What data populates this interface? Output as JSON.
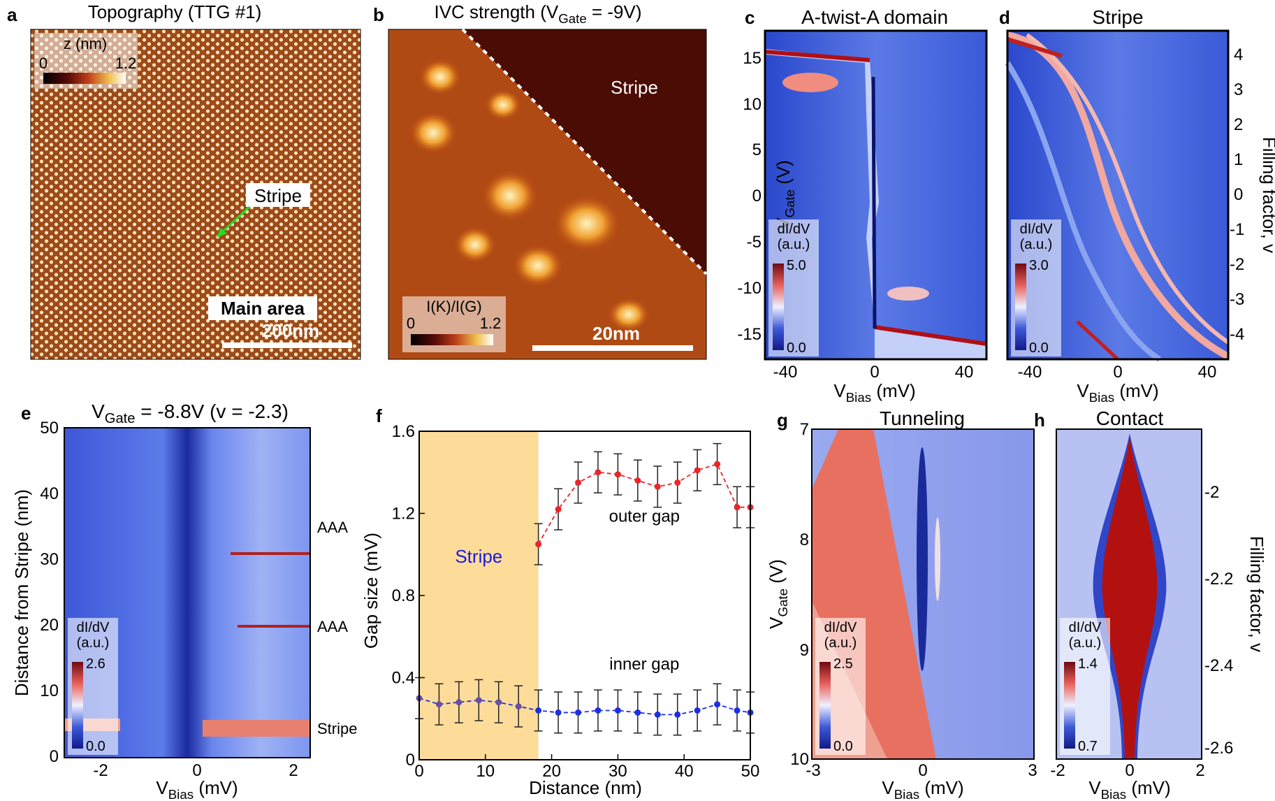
{
  "panels": {
    "a": {
      "letter": "a",
      "title": "Topography (TTG #1)",
      "cbar_title": "z (nm)",
      "cbar_min": "0",
      "cbar_max": "1.2",
      "stripe_label": "Stripe",
      "area_label": "Main area",
      "scale_label": "200nm"
    },
    "b": {
      "letter": "b",
      "title_main": "IVC strength (V",
      "title_sub": "Gate",
      "title_end": " = -9V)",
      "stripe_label": "Stripe",
      "cbar_title": "I(K)/I(G)",
      "cbar_min": "0",
      "cbar_max": "1.2",
      "scale_label": "20nm"
    },
    "c": {
      "letter": "c",
      "title": "A-twist-A domain",
      "ylabel_main": "V",
      "ylabel_sub": "Gate",
      "ylabel_end": " (V)",
      "yticks": [
        "15",
        "10",
        "5",
        "0",
        "-5",
        "-10",
        "-15"
      ],
      "xticks": [
        "-40",
        "0",
        "40"
      ],
      "xlabel_main": "V",
      "xlabel_sub": "Bias",
      "xlabel_end": " (mV)",
      "cbar_title1": "dI/dV",
      "cbar_title2": "(a.u.)",
      "cbar_max": "5.0",
      "cbar_min": "0.0"
    },
    "d": {
      "letter": "d",
      "title": "Stripe",
      "xticks": [
        "-40",
        "0",
        "40"
      ],
      "xlabel_main": "V",
      "xlabel_sub": "Bias",
      "xlabel_end": " (mV)",
      "right_ticks": [
        "4",
        "3",
        "2",
        "1",
        "0",
        "-1",
        "-2",
        "-3",
        "-4"
      ],
      "right_label": "Filling factor, v",
      "cbar_title1": "dI/dV",
      "cbar_title2": "(a.u.)",
      "cbar_max": "3.0",
      "cbar_min": "0.0"
    },
    "e": {
      "letter": "e",
      "title_main": "V",
      "title_sub": "Gate",
      "title_end": " = -8.8V (v = -2.3)",
      "ylabel": "Distance from Stripe (nm)",
      "yticks": [
        "50",
        "40",
        "30",
        "20",
        "10",
        "0"
      ],
      "xticks": [
        "-2",
        "0",
        "2"
      ],
      "xlabel_main": "V",
      "xlabel_sub": "Bias",
      "xlabel_end": " (mV)",
      "annotations": [
        "AAA",
        "AAA",
        "Stripe"
      ],
      "cbar_title1": "dI/dV",
      "cbar_title2": "(a.u.)",
      "cbar_max": "2.6",
      "cbar_min": "0.0"
    },
    "g": {
      "letter": "g",
      "title": "Tunneling",
      "ylabel_main": "V",
      "ylabel_sub": "Gate",
      "ylabel_end": " (V)",
      "yticks": [
        "7",
        "8",
        "9",
        "10"
      ],
      "xticks": [
        "-3",
        "0",
        "3"
      ],
      "xlabel_main": "V",
      "xlabel_sub": "Bias",
      "xlabel_end": " (mV)",
      "cbar_title1": "dI/dV",
      "cbar_title2": "(a.u.)",
      "cbar_max": "2.5",
      "cbar_min": "0.0"
    },
    "h": {
      "letter": "h",
      "title": "Contact",
      "xticks": [
        "-2",
        "0",
        "2"
      ],
      "xlabel_main": "V",
      "xlabel_sub": "Bias",
      "xlabel_end": " (mV)",
      "right_ticks": [
        "-2",
        "-2.2",
        "-2.4",
        "-2.6"
      ],
      "right_label": "Filling factor, v",
      "cbar_title1": "dI/dV",
      "cbar_title2": "(a.u.)",
      "cbar_max": "1.4",
      "cbar_min": "0.7"
    }
  },
  "chart_data": {
    "panel": "f",
    "letter": "f",
    "type": "line",
    "xlabel": "Distance (nm)",
    "ylabel": "Gap size (mV)",
    "xlim": [
      0,
      50
    ],
    "ylim": [
      0,
      1.6
    ],
    "xticks": [
      0,
      10,
      20,
      30,
      40,
      50
    ],
    "yticks": [
      0,
      0.4,
      0.8,
      1.2,
      1.6
    ],
    "ytick_labels": [
      "0",
      "0.4",
      "0.8",
      "1.2",
      "1.6"
    ],
    "shaded_region": {
      "x0": 0,
      "x1": 18,
      "label": "Stripe",
      "color": "#fddc9a"
    },
    "series": [
      {
        "name": "outer gap",
        "color": "#e8262a",
        "x": [
          18,
          21,
          24,
          27,
          30,
          33,
          36,
          39,
          42,
          45,
          48,
          50
        ],
        "y": [
          1.05,
          1.22,
          1.35,
          1.4,
          1.39,
          1.36,
          1.33,
          1.35,
          1.41,
          1.44,
          1.23,
          1.23
        ],
        "err": [
          0.1,
          0.1,
          0.1,
          0.1,
          0.1,
          0.1,
          0.1,
          0.1,
          0.1,
          0.1,
          0.1,
          0.1
        ]
      },
      {
        "name": "inner gap",
        "color": "#1f2fe0",
        "color_in_stripe": "#6a4fa0",
        "x": [
          0,
          3,
          6,
          9,
          12,
          15,
          18,
          21,
          24,
          27,
          30,
          33,
          36,
          39,
          42,
          45,
          48,
          50
        ],
        "y": [
          0.3,
          0.27,
          0.28,
          0.29,
          0.28,
          0.26,
          0.24,
          0.23,
          0.23,
          0.24,
          0.24,
          0.23,
          0.22,
          0.22,
          0.24,
          0.27,
          0.24,
          0.23
        ],
        "err": [
          0.1,
          0.1,
          0.1,
          0.1,
          0.1,
          0.1,
          0.1,
          0.1,
          0.1,
          0.1,
          0.1,
          0.1,
          0.1,
          0.1,
          0.1,
          0.1,
          0.1,
          0.1
        ]
      }
    ]
  }
}
